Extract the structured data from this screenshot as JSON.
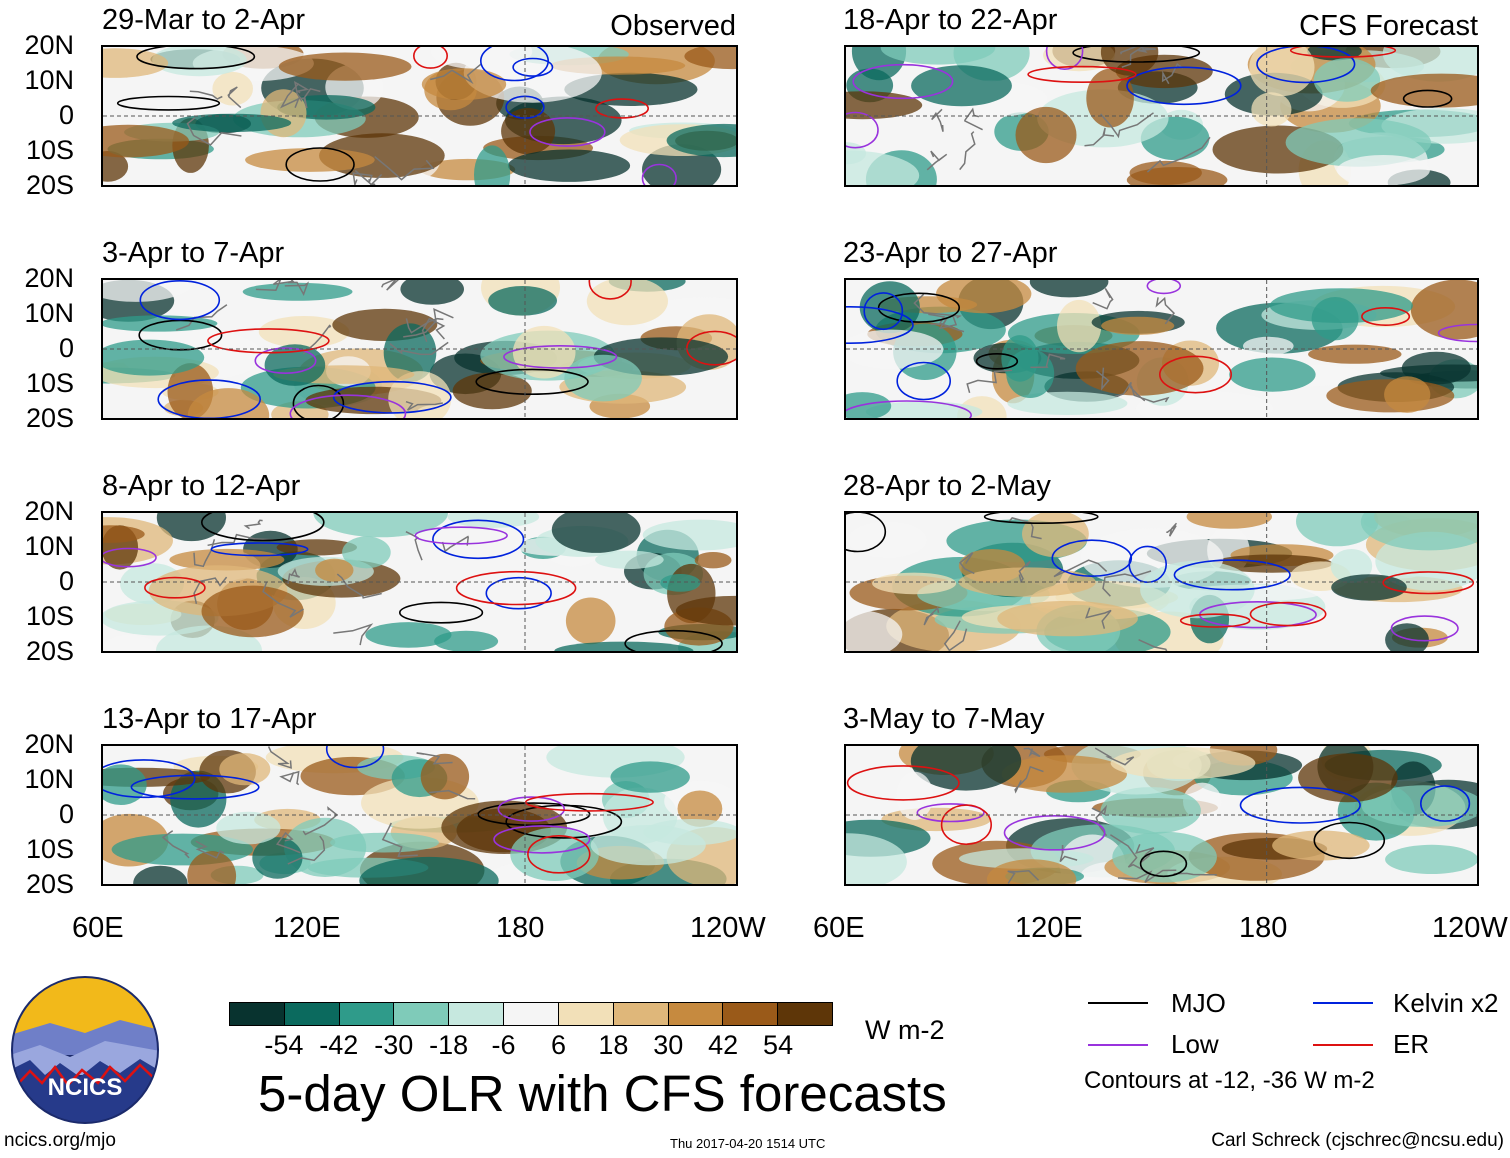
{
  "chart_data": {
    "type": "heatmap",
    "title": "5-day OLR with CFS forecasts",
    "variable": "OLR anomaly",
    "units": "W m-2",
    "column_labels": [
      "Observed",
      "CFS Forecast"
    ],
    "x_ticks": [
      "60E",
      "120E",
      "180",
      "120W"
    ],
    "y_ticks": [
      "20N",
      "10N",
      "0",
      "10S",
      "20S"
    ],
    "ylim": [
      -20,
      20
    ],
    "xlim_deg": [
      60,
      240
    ],
    "colorbar": {
      "labels": [
        "-54",
        "-42",
        "-30",
        "-18",
        "-6",
        "6",
        "18",
        "30",
        "42",
        "54"
      ],
      "colors": [
        "#08332f",
        "#0b6a5e",
        "#2f9b8a",
        "#7fcbb9",
        "#c6e8df",
        "#f5f5f5",
        "#f2e0b8",
        "#dfb77a",
        "#c68a3f",
        "#9a5a19",
        "#5e3608"
      ]
    },
    "panels": [
      {
        "col": "Observed",
        "period": "29-Mar to 2-Apr"
      },
      {
        "col": "Observed",
        "period": "3-Apr to 7-Apr"
      },
      {
        "col": "Observed",
        "period": "8-Apr to 12-Apr"
      },
      {
        "col": "Observed",
        "period": "13-Apr to 17-Apr"
      },
      {
        "col": "CFS Forecast",
        "period": "18-Apr to 22-Apr"
      },
      {
        "col": "CFS Forecast",
        "period": "23-Apr to 27-Apr"
      },
      {
        "col": "CFS Forecast",
        "period": "28-Apr to 2-May"
      },
      {
        "col": "CFS Forecast",
        "period": "3-May to 7-May"
      }
    ],
    "legend": [
      {
        "label": "MJO",
        "color": "#000000"
      },
      {
        "label": "Kelvin x2",
        "color": "#0022dd"
      },
      {
        "label": "Low",
        "color": "#9933dd"
      },
      {
        "label": "ER",
        "color": "#dd1111"
      }
    ],
    "contour_note": "Contours at -12, -36 W m-2"
  },
  "logo_text": "NCICS",
  "footer": {
    "left": "ncics.org/mjo",
    "middle": "Thu 2017-04-20 1514 UTC",
    "right": "Carl Schreck (cjschrec@ncsu.edu)"
  }
}
